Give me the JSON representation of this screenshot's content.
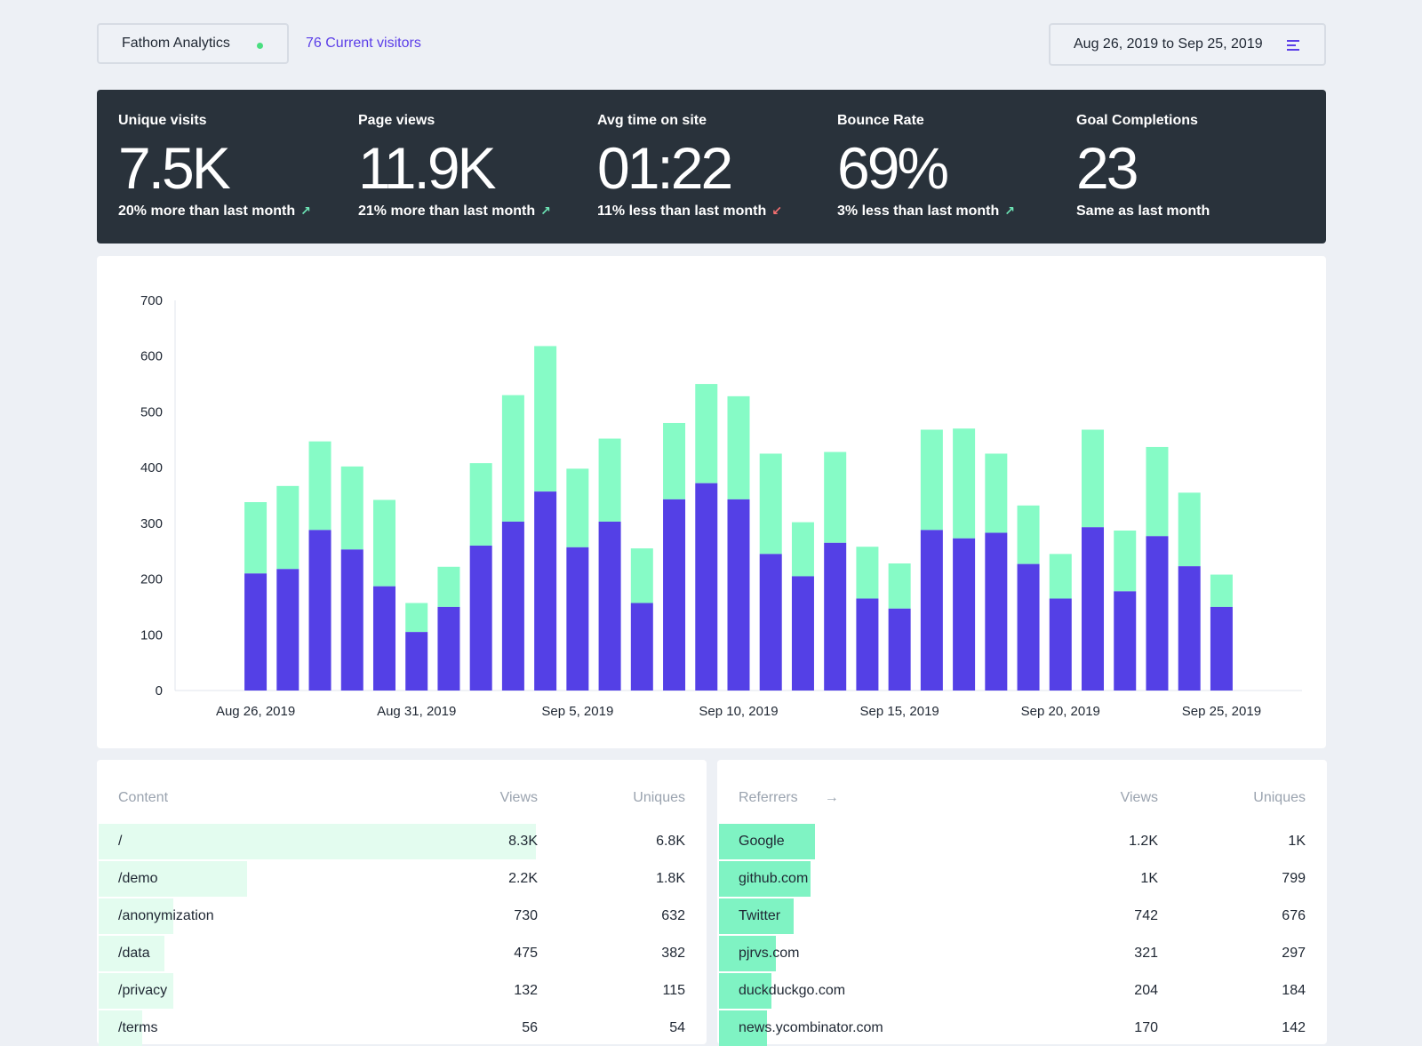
{
  "header": {
    "site_name": "Fathom Analytics",
    "current_visitors": "76 Current visitors",
    "date_range": "Aug 26, 2019 to Sep 25, 2019",
    "status_color": "#4ade80",
    "menu_icon": "menu-icon"
  },
  "stats": [
    {
      "label": "Unique visits",
      "value": "7.5K",
      "change": "20% more than last month",
      "trend": "up"
    },
    {
      "label": "Page views",
      "value": "11.9K",
      "change": "21% more than last month",
      "trend": "up"
    },
    {
      "label": "Avg time on site",
      "value": "01:22",
      "change": "11% less than last month",
      "trend": "down"
    },
    {
      "label": "Bounce Rate",
      "value": "69%",
      "change": "3% less than last month",
      "trend": "up"
    },
    {
      "label": "Goal Completions",
      "value": "23",
      "change": "Same as last month",
      "trend": "none"
    }
  ],
  "chart_data": {
    "type": "bar",
    "stacked": true,
    "ylim": [
      0,
      700
    ],
    "yticks": [
      0,
      100,
      200,
      300,
      400,
      500,
      600,
      700
    ],
    "xtick_labels": [
      "Aug 26, 2019",
      "Aug 31, 2019",
      "Sep 5, 2019",
      "Sep 10, 2019",
      "Sep 15, 2019",
      "Sep 20, 2019",
      "Sep 25, 2019"
    ],
    "colors": {
      "visitors": "#5440e6",
      "pageviews": "#86fbc6"
    },
    "visitors": [
      0,
      0,
      210,
      218,
      288,
      253,
      187,
      105,
      150,
      260,
      303,
      357,
      257,
      303,
      157,
      343,
      372,
      343,
      245,
      205,
      265,
      165,
      147,
      288,
      273,
      283,
      227,
      165,
      293,
      178,
      277,
      223,
      150,
      0,
      0
    ],
    "total": [
      0,
      0,
      338,
      367,
      447,
      402,
      342,
      157,
      222,
      408,
      530,
      618,
      398,
      452,
      255,
      480,
      550,
      528,
      425,
      302,
      428,
      258,
      228,
      468,
      470,
      425,
      332,
      245,
      468,
      287,
      437,
      355,
      208,
      0,
      0
    ]
  },
  "content_table": {
    "headers": {
      "name": "Content",
      "views": "Views",
      "uniques": "Uniques"
    },
    "rows": [
      {
        "name": "/",
        "views": "8.3K",
        "uniques": "6.8K",
        "share": 1.0
      },
      {
        "name": "/demo",
        "views": "2.2K",
        "uniques": "1.8K",
        "share": 0.34
      },
      {
        "name": "/anonymization",
        "views": "730",
        "uniques": "632",
        "share": 0.17
      },
      {
        "name": "/data",
        "views": "475",
        "uniques": "382",
        "share": 0.15
      },
      {
        "name": "/privacy",
        "views": "132",
        "uniques": "115",
        "share": 0.17
      },
      {
        "name": "/terms",
        "views": "56",
        "uniques": "54",
        "share": 0.1
      }
    ]
  },
  "referrers_table": {
    "headers": {
      "name": "Referrers",
      "arrow": "→",
      "views": "Views",
      "uniques": "Uniques"
    },
    "rows": [
      {
        "name": "Google",
        "views": "1.2K",
        "uniques": "1K",
        "share": 0.22
      },
      {
        "name": "github.com",
        "views": "1K",
        "uniques": "799",
        "share": 0.21
      },
      {
        "name": "Twitter",
        "views": "742",
        "uniques": "676",
        "share": 0.17
      },
      {
        "name": "pjrvs.com",
        "views": "321",
        "uniques": "297",
        "share": 0.13
      },
      {
        "name": "duckduckgo.com",
        "views": "204",
        "uniques": "184",
        "share": 0.12
      },
      {
        "name": "news.ycombinator.com",
        "views": "170",
        "uniques": "142",
        "share": 0.11
      }
    ]
  }
}
